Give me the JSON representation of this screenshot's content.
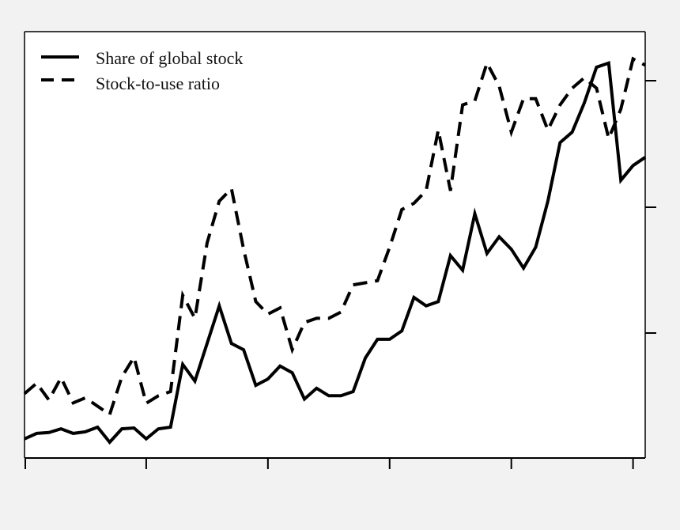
{
  "chart_data": {
    "type": "line",
    "title": "",
    "xlabel": "",
    "ylabel": "",
    "xlim": [
      0,
      51
    ],
    "ylim": [
      0,
      1
    ],
    "legend_position": "top-left",
    "grid": false,
    "series": [
      {
        "name": "Share of global stock",
        "style": "solid",
        "color": "#000000",
        "x": [
          0,
          1,
          2,
          3,
          4,
          5,
          6,
          7,
          8,
          9,
          10,
          11,
          12,
          13,
          14,
          15,
          16,
          17,
          18,
          19,
          20,
          21,
          22,
          23,
          24,
          25,
          26,
          27,
          28,
          29,
          30,
          31,
          32,
          33,
          34,
          35,
          36,
          37,
          38,
          39,
          40,
          41,
          42,
          43,
          44,
          45,
          46,
          47,
          48,
          49,
          50,
          51
        ],
        "values": [
          0.042,
          0.055,
          0.057,
          0.066,
          0.055,
          0.059,
          0.07,
          0.034,
          0.066,
          0.068,
          0.042,
          0.066,
          0.07,
          0.22,
          0.18,
          0.27,
          0.36,
          0.27,
          0.255,
          0.17,
          0.185,
          0.216,
          0.2,
          0.137,
          0.163,
          0.145,
          0.145,
          0.155,
          0.235,
          0.28,
          0.28,
          0.3,
          0.38,
          0.36,
          0.37,
          0.48,
          0.445,
          0.58,
          0.485,
          0.525,
          0.495,
          0.45,
          0.5,
          0.61,
          0.75,
          0.775,
          0.845,
          0.93,
          0.94,
          0.66,
          0.695,
          0.715
        ]
      },
      {
        "name": "Stock-to-use ratio",
        "style": "dashed",
        "color": "#000000",
        "x": [
          0,
          1,
          2,
          3,
          4,
          5,
          6,
          7,
          8,
          9,
          10,
          11,
          12,
          13,
          14,
          15,
          16,
          17,
          18,
          19,
          20,
          21,
          22,
          23,
          24,
          25,
          26,
          27,
          28,
          29,
          30,
          31,
          32,
          33,
          34,
          35,
          36,
          37,
          38,
          39,
          40,
          41,
          42,
          43,
          44,
          45,
          46,
          47,
          48,
          49,
          50,
          51
        ],
        "values": [
          0.15,
          0.175,
          0.135,
          0.188,
          0.128,
          0.14,
          0.12,
          0.1,
          0.19,
          0.237,
          0.127,
          0.145,
          0.155,
          0.385,
          0.33,
          0.51,
          0.61,
          0.64,
          0.495,
          0.37,
          0.34,
          0.355,
          0.255,
          0.32,
          0.33,
          0.33,
          0.345,
          0.41,
          0.415,
          0.42,
          0.5,
          0.59,
          0.605,
          0.635,
          0.78,
          0.635,
          0.84,
          0.85,
          0.94,
          0.885,
          0.775,
          0.855,
          0.855,
          0.78,
          0.84,
          0.88,
          0.905,
          0.88,
          0.76,
          0.83,
          0.95,
          0.935
        ]
      }
    ]
  }
}
